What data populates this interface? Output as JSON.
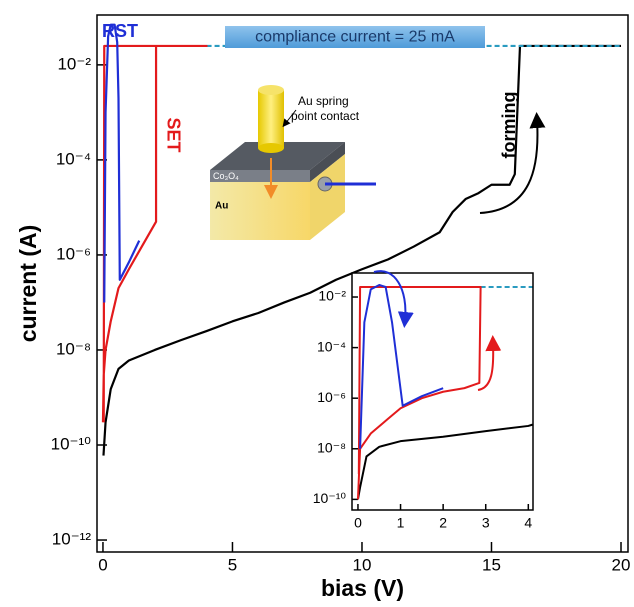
{
  "chart_data": [
    {
      "type": "line",
      "yscale": "log",
      "x_label": "bias (V)",
      "y_label": "current (A)",
      "xlim": [
        -0.23,
        20.27
      ],
      "xticks": [
        0,
        5,
        10,
        15,
        20
      ],
      "ylim": [
        5.6e-13,
        0.112
      ],
      "yticks": [
        {
          "value": 0.01,
          "label": "10⁻²"
        },
        {
          "value": 0.0001,
          "label": "10⁻⁴"
        },
        {
          "value": 1e-06,
          "label": "10⁻⁶"
        },
        {
          "value": 1e-08,
          "label": "10⁻⁸"
        },
        {
          "value": 1e-10,
          "label": "10⁻¹⁰"
        },
        {
          "value": 1e-12,
          "label": "10⁻¹²"
        }
      ],
      "annotations": {
        "compliance": "compliance current = 25 mA",
        "contact": [
          "Au spring",
          "point contact"
        ],
        "oxide": "Co₃O₄",
        "electrode": "Au"
      },
      "series": [
        {
          "name": "forming",
          "color": "#000000",
          "x": [
            0.02,
            0.1,
            0.3,
            0.6,
            1,
            2,
            3,
            4,
            5,
            6,
            7,
            8,
            9,
            10,
            11,
            12,
            13,
            13.5,
            14,
            14.5,
            15,
            15.7,
            15.9,
            16.1,
            20
          ],
          "values": [
            6e-11,
            3e-10,
            1.5e-09,
            4e-09,
            6e-09,
            1e-08,
            1.6e-08,
            2.5e-08,
            4e-08,
            6e-08,
            1e-07,
            1.6e-07,
            3e-07,
            5e-07,
            8e-07,
            1.5e-06,
            3e-06,
            8e-06,
            1.5e-05,
            2e-05,
            3e-05,
            3e-05,
            5e-05,
            0.025,
            0.025
          ]
        },
        {
          "color": "#2a9bc0",
          "dashed": true,
          "x": [
            4,
            20
          ],
          "values": [
            0.025,
            0.025
          ]
        },
        {
          "name": "SET",
          "color": "#e31a1c",
          "x": [
            0,
            0.03,
            0.1,
            0.3,
            0.6,
            1,
            1.5,
            2.05,
            2.05,
            4,
            0.05,
            0.03
          ],
          "values": [
            3e-10,
            3e-09,
            1e-08,
            4e-08,
            2e-07,
            5e-07,
            1.5e-06,
            5e-06,
            0.025,
            0.025,
            0.025,
            3e-10
          ]
        },
        {
          "name": "RST",
          "color": "#1f2fd6",
          "x": [
            0.05,
            0.1,
            0.2,
            0.3,
            0.45,
            0.55,
            0.6,
            0.65,
            1,
            1.4
          ],
          "values": [
            1e-07,
            0.001,
            0.04,
            0.07,
            0.07,
            0.03,
            0.002,
            3e-07,
            7e-07,
            2e-06
          ]
        }
      ]
    },
    {
      "type": "line",
      "yscale": "log",
      "xlim": [
        -0.14,
        4.11
      ],
      "xticks": [
        0,
        1,
        2,
        3,
        4
      ],
      "ylim": [
        3.8e-11,
        0.089
      ],
      "yticks": [
        {
          "value": 0.01,
          "label": "10⁻²"
        },
        {
          "value": 0.0001,
          "label": "10⁻⁴"
        },
        {
          "value": 1e-06,
          "label": "10⁻⁶"
        },
        {
          "value": 1e-08,
          "label": "10⁻⁸"
        },
        {
          "value": 1e-10,
          "label": "10⁻¹⁰"
        }
      ],
      "series": [
        {
          "color": "#000000",
          "x": [
            0,
            0.05,
            0.2,
            0.5,
            1,
            2,
            3,
            4,
            4.1
          ],
          "values": [
            1e-10,
            3e-10,
            5e-09,
            1.2e-08,
            2e-08,
            3e-08,
            5e-08,
            8e-08,
            9e-08
          ]
        },
        {
          "color": "#2a9bc0",
          "dashed": true,
          "x": [
            2.88,
            4.1
          ],
          "values": [
            0.025,
            0.025
          ]
        },
        {
          "color": "#e31a1c",
          "x": [
            0,
            0.05,
            0.3,
            0.7,
            1,
            1.5,
            2,
            2.5,
            2.85,
            2.88,
            0.05,
            0.02
          ],
          "values": [
            1e-10,
            1e-08,
            4e-08,
            1.5e-07,
            4e-07,
            1e-06,
            1.8e-06,
            2.5e-06,
            4e-06,
            0.025,
            0.025,
            1e-09
          ]
        },
        {
          "color": "#1f2fd6",
          "x": [
            0.05,
            0.15,
            0.3,
            0.5,
            0.65,
            0.8,
            1.05,
            1.5,
            2
          ],
          "values": [
            1e-08,
            0.001,
            0.02,
            0.03,
            0.025,
            0.001,
            5e-07,
            1.2e-06,
            2.5e-06
          ]
        }
      ]
    }
  ]
}
